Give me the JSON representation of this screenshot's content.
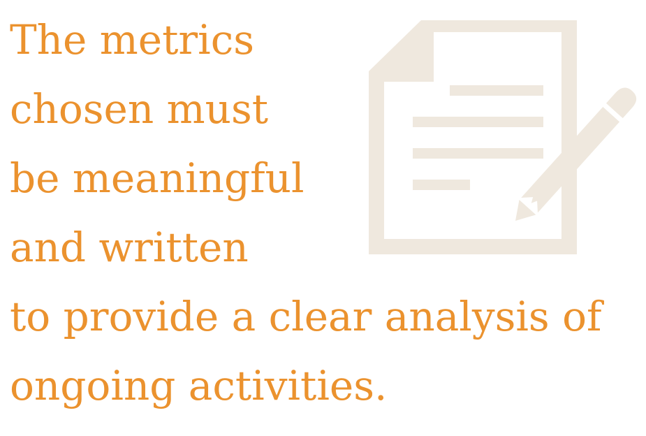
{
  "colors": {
    "text": "#EB922E",
    "icon": "#EFE8DE",
    "background": "#FFFFFF"
  },
  "icon": {
    "name": "document-with-pencil-icon"
  },
  "quote": {
    "lines": [
      "The metrics",
      "chosen must",
      "be meaningful",
      "and written",
      "to provide a clear analysis of",
      "ongoing activities."
    ]
  }
}
